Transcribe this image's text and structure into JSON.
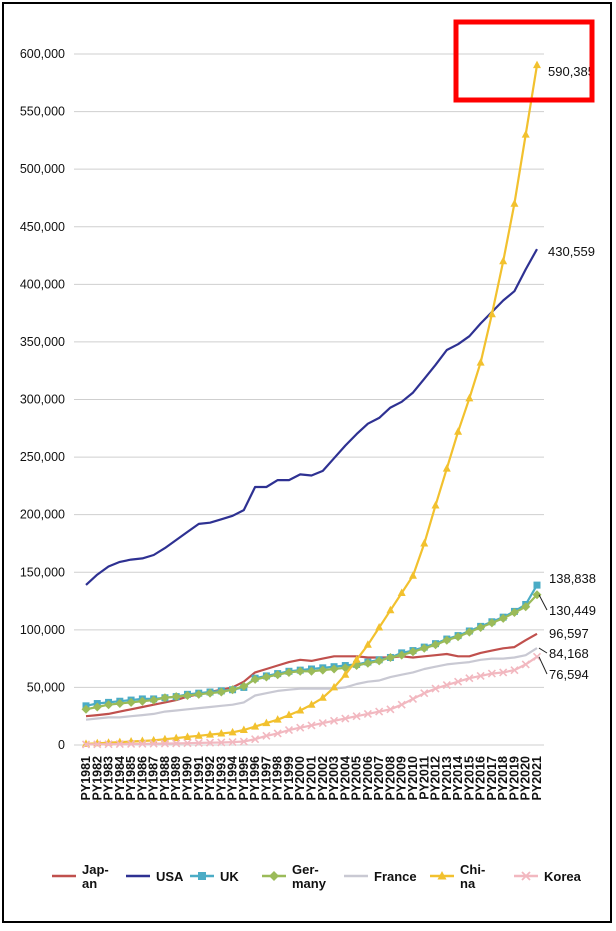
{
  "chart_data": {
    "type": "line",
    "title": "",
    "xlabel": "",
    "ylabel": "",
    "ylim": [
      0,
      600000
    ],
    "y_ticks": [
      "0",
      "50,000",
      "100,000",
      "150,000",
      "200,000",
      "250,000",
      "300,000",
      "350,000",
      "400,000",
      "450,000",
      "500,000",
      "550,000",
      "600,000"
    ],
    "grid": true,
    "legend_position": "bottom",
    "categories": [
      "PY1981",
      "PY1982",
      "PY1983",
      "PY1984",
      "PY1985",
      "PY1986",
      "PY1987",
      "PY1988",
      "PY1989",
      "PY1990",
      "PY1991",
      "PY1992",
      "PY1993",
      "PY1994",
      "PY1995",
      "PY1996",
      "PY1997",
      "PY1998",
      "PY1999",
      "PY2000",
      "PY2001",
      "PY2002",
      "PY2003",
      "PY2004",
      "PY2005",
      "PY2006",
      "PY2007",
      "PY2008",
      "PY2009",
      "PY2010",
      "PY2011",
      "PY2012",
      "PY2013",
      "PY2014",
      "PY2015",
      "PY2016",
      "PY2017",
      "PY2018",
      "PY2019",
      "PY2020",
      "PY2021"
    ],
    "series": [
      {
        "name": "Jap-an",
        "color": "#c0504d",
        "marker": "none",
        "values": [
          25000,
          26000,
          27000,
          29000,
          31000,
          33000,
          35000,
          37000,
          39000,
          42000,
          44000,
          46000,
          48000,
          50000,
          55000,
          63000,
          66000,
          69000,
          72000,
          74000,
          73000,
          75000,
          77000,
          77000,
          77000,
          76000,
          76000,
          76000,
          77000,
          76000,
          77000,
          78000,
          79000,
          77000,
          77000,
          80000,
          82000,
          84000,
          85000,
          91000,
          96597
        ]
      },
      {
        "name": "USA",
        "color": "#2e3192",
        "marker": "none",
        "values": [
          139000,
          148000,
          155000,
          159000,
          161000,
          162000,
          165000,
          171000,
          178000,
          185000,
          192000,
          193000,
          196000,
          199000,
          204000,
          224000,
          224000,
          230000,
          230000,
          235000,
          234000,
          238000,
          249000,
          260000,
          270000,
          279000,
          284000,
          293000,
          298000,
          306000,
          318000,
          330000,
          343000,
          348000,
          355000,
          366000,
          376000,
          386000,
          394000,
          413000,
          430559
        ]
      },
      {
        "name": "UK",
        "color": "#4bacc6",
        "marker": "square",
        "values": [
          34000,
          36000,
          37000,
          38000,
          39000,
          40000,
          40000,
          41000,
          42000,
          44000,
          45000,
          46000,
          47000,
          48000,
          50000,
          58000,
          60000,
          62000,
          64000,
          65000,
          66000,
          67000,
          68000,
          69000,
          70000,
          72000,
          74000,
          76000,
          80000,
          82000,
          85000,
          88000,
          92000,
          95000,
          99000,
          103000,
          107000,
          111000,
          116000,
          122000,
          138838
        ]
      },
      {
        "name": "Ger-many",
        "color": "#9bbb59",
        "marker": "diamond",
        "values": [
          31000,
          33000,
          35000,
          36000,
          37000,
          38000,
          39000,
          41000,
          42000,
          43000,
          44000,
          45000,
          46000,
          48000,
          51000,
          57000,
          59000,
          61000,
          63000,
          64000,
          64000,
          65000,
          66000,
          67000,
          69000,
          71000,
          73000,
          76000,
          78000,
          81000,
          84000,
          87000,
          91000,
          94000,
          98000,
          102000,
          106000,
          110000,
          115000,
          120000,
          130449
        ]
      },
      {
        "name": "France",
        "color": "#c9c9d3",
        "marker": "none",
        "values": [
          22000,
          23000,
          24000,
          24000,
          25000,
          26000,
          27000,
          29000,
          30000,
          31000,
          32000,
          33000,
          34000,
          35000,
          37000,
          43000,
          45000,
          47000,
          48000,
          49000,
          49000,
          49000,
          49000,
          50000,
          53000,
          55000,
          56000,
          59000,
          61000,
          63000,
          66000,
          68000,
          70000,
          71000,
          72000,
          74000,
          75000,
          75000,
          76000,
          78000,
          84168
        ]
      },
      {
        "name": "Chi-na",
        "color": "#f2c12e",
        "marker": "triangle",
        "values": [
          1000,
          1500,
          2000,
          2500,
          3000,
          3500,
          4000,
          5000,
          6000,
          7000,
          8000,
          9000,
          10000,
          11000,
          13000,
          16000,
          19000,
          22000,
          26000,
          30000,
          35000,
          41000,
          50000,
          61000,
          74000,
          87000,
          102000,
          117000,
          132000,
          147000,
          175000,
          208000,
          240000,
          272000,
          301000,
          332000,
          374000,
          420000,
          470000,
          530000,
          590385
        ]
      },
      {
        "name": "Korea",
        "color": "#f2b8c0",
        "marker": "x",
        "values": [
          500,
          600,
          700,
          800,
          900,
          1000,
          1100,
          1200,
          1400,
          1600,
          1800,
          2000,
          2200,
          2500,
          3000,
          5000,
          8000,
          10000,
          13000,
          15000,
          17000,
          19000,
          21000,
          23000,
          25000,
          27000,
          29000,
          31000,
          35000,
          40000,
          45000,
          49000,
          52000,
          55000,
          58000,
          60000,
          62000,
          63000,
          65000,
          70000,
          76594
        ]
      }
    ],
    "end_labels": [
      {
        "series": "Chi-na",
        "text": "590,385"
      },
      {
        "series": "USA",
        "text": "430,559"
      },
      {
        "series": "UK",
        "text": "138,838"
      },
      {
        "series": "Ger-many",
        "text": "130,449"
      },
      {
        "series": "Jap-an",
        "text": "96,597"
      },
      {
        "series": "France",
        "text": "84,168"
      },
      {
        "series": "Korea",
        "text": "76,594"
      }
    ],
    "legend": [
      {
        "line1": "Jap-",
        "line2": "an"
      },
      {
        "line1": "USA",
        "line2": ""
      },
      {
        "line1": "UK",
        "line2": ""
      },
      {
        "line1": "Ger-",
        "line2": "many"
      },
      {
        "line1": "France",
        "line2": ""
      },
      {
        "line1": "Chi-",
        "line2": "na"
      },
      {
        "line1": "Korea",
        "line2": ""
      }
    ],
    "highlight_color": "#ff0000"
  }
}
